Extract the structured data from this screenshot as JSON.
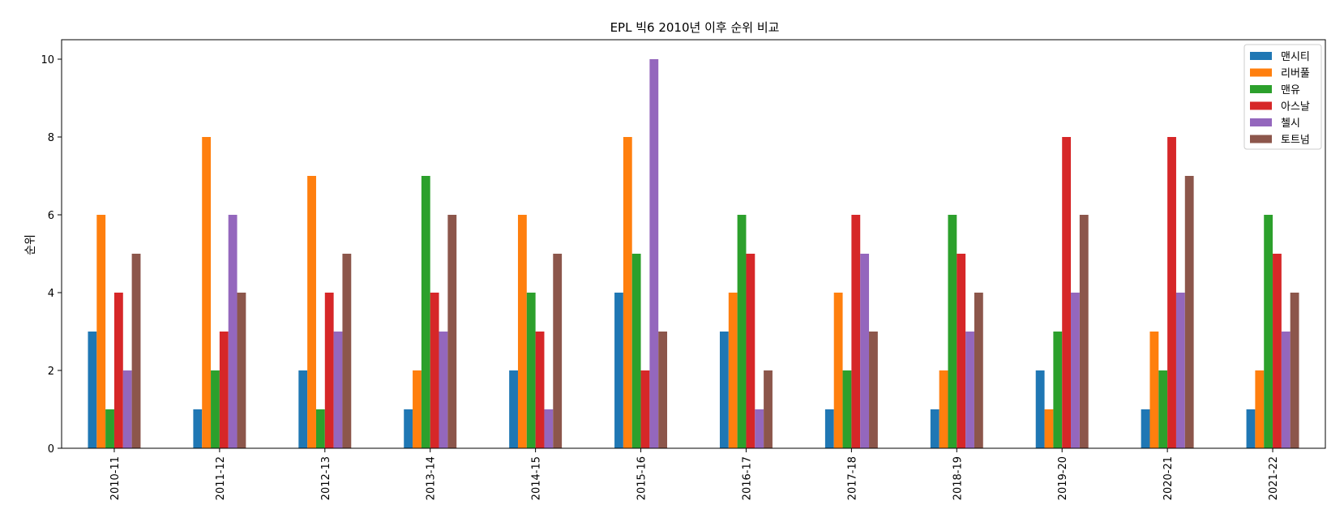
{
  "chart_data": {
    "type": "bar",
    "title": "EPL 빅6 2010년 이후 순위 비교",
    "xlabel": "",
    "ylabel": "순위",
    "ylim": [
      0,
      10.5
    ],
    "yticks": [
      0,
      2,
      4,
      6,
      8,
      10
    ],
    "grid": false,
    "legend_position": "top-right",
    "categories": [
      "2010-11",
      "2011-12",
      "2012-13",
      "2013-14",
      "2014-15",
      "2015-16",
      "2016-17",
      "2017-18",
      "2018-19",
      "2019-20",
      "2020-21",
      "2021-22"
    ],
    "series": [
      {
        "name": "맨시티",
        "color": "#1f77b4",
        "values": [
          3,
          1,
          2,
          1,
          2,
          4,
          3,
          1,
          1,
          2,
          1,
          1
        ]
      },
      {
        "name": "리버풀",
        "color": "#ff7f0e",
        "values": [
          6,
          8,
          7,
          2,
          6,
          8,
          4,
          4,
          2,
          1,
          3,
          2
        ]
      },
      {
        "name": "맨유",
        "color": "#2ca02c",
        "values": [
          1,
          2,
          1,
          7,
          4,
          5,
          6,
          2,
          6,
          3,
          2,
          6
        ]
      },
      {
        "name": "아스날",
        "color": "#d62728",
        "values": [
          4,
          3,
          4,
          4,
          3,
          2,
          5,
          6,
          5,
          8,
          8,
          5
        ]
      },
      {
        "name": "첼시",
        "color": "#9467bd",
        "values": [
          2,
          6,
          3,
          3,
          1,
          10,
          1,
          5,
          3,
          4,
          4,
          3
        ]
      },
      {
        "name": "토트넘",
        "color": "#8c564b",
        "values": [
          5,
          4,
          5,
          6,
          5,
          3,
          2,
          3,
          4,
          6,
          7,
          4
        ]
      }
    ]
  }
}
